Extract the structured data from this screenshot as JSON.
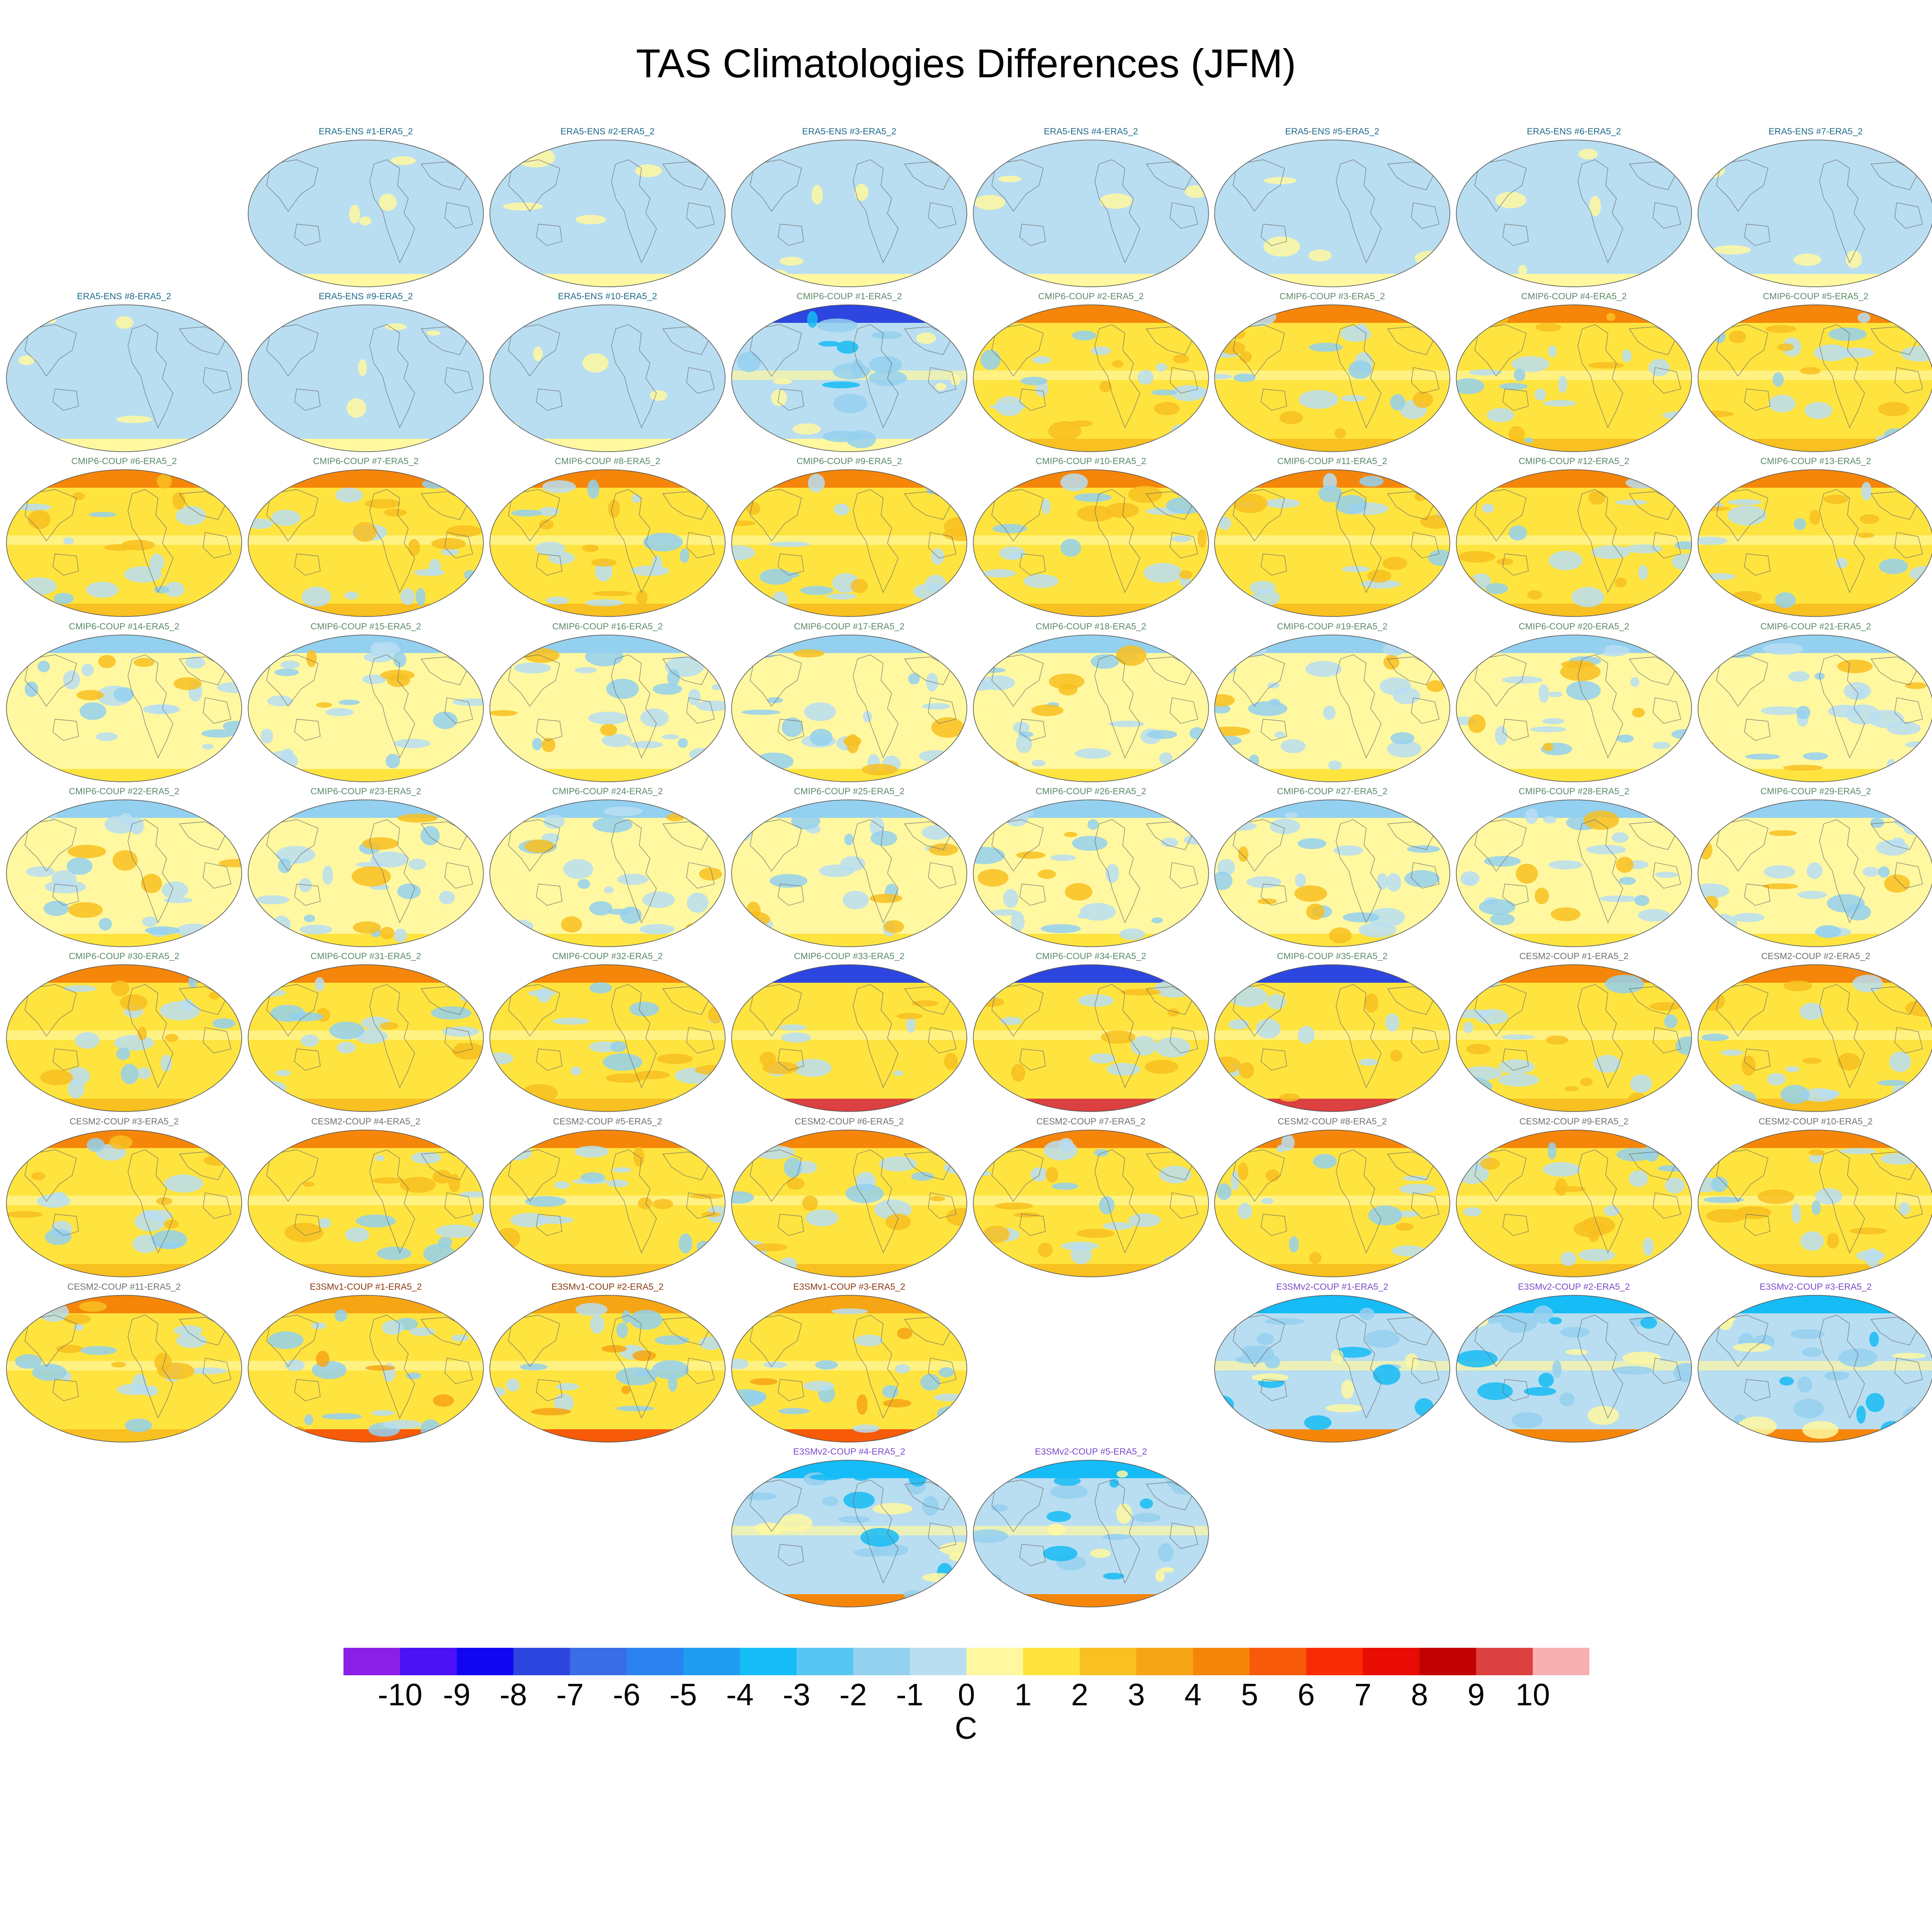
{
  "title": "TAS Climatologies Differences (JFM)",
  "chart_data": {
    "type": "heatmap",
    "title": "TAS Climatologies Differences (JFM)",
    "colorbar": {
      "unit": "C",
      "tick_labels": [
        "-10",
        "-9",
        "-8",
        "-7",
        "-6",
        "-5",
        "-4",
        "-3",
        "-2",
        "-1",
        "0",
        "1",
        "2",
        "3",
        "4",
        "5",
        "6",
        "7",
        "8",
        "9",
        "10"
      ],
      "colors": [
        "#8a1fe8",
        "#4a12f5",
        "#1206f0",
        "#2e46e0",
        "#3a6de6",
        "#2b82f0",
        "#1f9cf0",
        "#16bcf5",
        "#58c6f2",
        "#94d0ef",
        "#b9def2",
        "#fff8a0",
        "#ffe440",
        "#f8c020",
        "#f6a514",
        "#f5860a",
        "#f75a08",
        "#f92a06",
        "#e80c04",
        "#c20202",
        "#dc4040",
        "#f8b0b0"
      ]
    },
    "grid": {
      "columns": 8,
      "rows": 10
    },
    "panels": [
      {
        "label": "ERA5-ENS   #1-ERA5_2",
        "row": 0,
        "col": 1,
        "style": "flat"
      },
      {
        "label": "ERA5-ENS   #2-ERA5_2",
        "row": 0,
        "col": 2,
        "style": "flat"
      },
      {
        "label": "ERA5-ENS   #3-ERA5_2",
        "row": 0,
        "col": 3,
        "style": "flat"
      },
      {
        "label": "ERA5-ENS   #4-ERA5_2",
        "row": 0,
        "col": 4,
        "style": "flat"
      },
      {
        "label": "ERA5-ENS   #5-ERA5_2",
        "row": 0,
        "col": 5,
        "style": "flat"
      },
      {
        "label": "ERA5-ENS   #6-ERA5_2",
        "row": 0,
        "col": 6,
        "style": "flat"
      },
      {
        "label": "ERA5-ENS   #7-ERA5_2",
        "row": 0,
        "col": 7,
        "style": "flat"
      },
      {
        "label": "ERA5-ENS   #8-ERA5_2",
        "row": 1,
        "col": 0,
        "style": "flat"
      },
      {
        "label": "ERA5-ENS   #9-ERA5_2",
        "row": 1,
        "col": 1,
        "style": "flat"
      },
      {
        "label": "ERA5-ENS   #10-ERA5_2",
        "row": 1,
        "col": 2,
        "style": "flat"
      },
      {
        "label": "CMIP6-COUP  #1-ERA5_2",
        "row": 1,
        "col": 3,
        "style": "coldnorth"
      },
      {
        "label": "CMIP6-COUP  #2-ERA5_2",
        "row": 1,
        "col": 4,
        "style": "warm"
      },
      {
        "label": "CMIP6-COUP  #3-ERA5_2",
        "row": 1,
        "col": 5,
        "style": "warm"
      },
      {
        "label": "CMIP6-COUP  #4-ERA5_2",
        "row": 1,
        "col": 6,
        "style": "warm"
      },
      {
        "label": "CMIP6-COUP  #5-ERA5_2",
        "row": 1,
        "col": 7,
        "style": "warm"
      },
      {
        "label": "CMIP6-COUP  #6-ERA5_2",
        "row": 2,
        "col": 0,
        "style": "warm"
      },
      {
        "label": "CMIP6-COUP  #7-ERA5_2",
        "row": 2,
        "col": 1,
        "style": "warm"
      },
      {
        "label": "CMIP6-COUP  #8-ERA5_2",
        "row": 2,
        "col": 2,
        "style": "warm"
      },
      {
        "label": "CMIP6-COUP  #9-ERA5_2",
        "row": 2,
        "col": 3,
        "style": "warm"
      },
      {
        "label": "CMIP6-COUP  #10-ERA5_2",
        "row": 2,
        "col": 4,
        "style": "warm"
      },
      {
        "label": "CMIP6-COUP  #11-ERA5_2",
        "row": 2,
        "col": 5,
        "style": "warm"
      },
      {
        "label": "CMIP6-COUP  #12-ERA5_2",
        "row": 2,
        "col": 6,
        "style": "warm"
      },
      {
        "label": "CMIP6-COUP  #13-ERA5_2",
        "row": 2,
        "col": 7,
        "style": "warm"
      },
      {
        "label": "CMIP6-COUP  #14-ERA5_2",
        "row": 3,
        "col": 0,
        "style": "mixed"
      },
      {
        "label": "CMIP6-COUP  #15-ERA5_2",
        "row": 3,
        "col": 1,
        "style": "mixed"
      },
      {
        "label": "CMIP6-COUP  #16-ERA5_2",
        "row": 3,
        "col": 2,
        "style": "mixed"
      },
      {
        "label": "CMIP6-COUP  #17-ERA5_2",
        "row": 3,
        "col": 3,
        "style": "mixed"
      },
      {
        "label": "CMIP6-COUP  #18-ERA5_2",
        "row": 3,
        "col": 4,
        "style": "mixed"
      },
      {
        "label": "CMIP6-COUP  #19-ERA5_2",
        "row": 3,
        "col": 5,
        "style": "mixed"
      },
      {
        "label": "CMIP6-COUP  #20-ERA5_2",
        "row": 3,
        "col": 6,
        "style": "mixed"
      },
      {
        "label": "CMIP6-COUP  #21-ERA5_2",
        "row": 3,
        "col": 7,
        "style": "mixed"
      },
      {
        "label": "CMIP6-COUP  #22-ERA5_2",
        "row": 4,
        "col": 0,
        "style": "mixed"
      },
      {
        "label": "CMIP6-COUP  #23-ERA5_2",
        "row": 4,
        "col": 1,
        "style": "mixed"
      },
      {
        "label": "CMIP6-COUP  #24-ERA5_2",
        "row": 4,
        "col": 2,
        "style": "mixed"
      },
      {
        "label": "CMIP6-COUP  #25-ERA5_2",
        "row": 4,
        "col": 3,
        "style": "mixed"
      },
      {
        "label": "CMIP6-COUP  #26-ERA5_2",
        "row": 4,
        "col": 4,
        "style": "mixed"
      },
      {
        "label": "CMIP6-COUP  #27-ERA5_2",
        "row": 4,
        "col": 5,
        "style": "mixed"
      },
      {
        "label": "CMIP6-COUP  #28-ERA5_2",
        "row": 4,
        "col": 6,
        "style": "mixed"
      },
      {
        "label": "CMIP6-COUP  #29-ERA5_2",
        "row": 4,
        "col": 7,
        "style": "mixed"
      },
      {
        "label": "CMIP6-COUP  #30-ERA5_2",
        "row": 5,
        "col": 0,
        "style": "warm"
      },
      {
        "label": "CMIP6-COUP  #31-ERA5_2",
        "row": 5,
        "col": 1,
        "style": "warm"
      },
      {
        "label": "CMIP6-COUP  #32-ERA5_2",
        "row": 5,
        "col": 2,
        "style": "warm"
      },
      {
        "label": "CMIP6-COUP  #33-ERA5_2",
        "row": 5,
        "col": 3,
        "style": "coldnorth_hotsouth"
      },
      {
        "label": "CMIP6-COUP  #34-ERA5_2",
        "row": 5,
        "col": 4,
        "style": "coldnorth_hotsouth"
      },
      {
        "label": "CMIP6-COUP  #35-ERA5_2",
        "row": 5,
        "col": 5,
        "style": "coldnorth_hotsouth"
      },
      {
        "label": "CESM2-COUP  #1-ERA5_2",
        "row": 5,
        "col": 6,
        "style": "warm"
      },
      {
        "label": "CESM2-COUP  #2-ERA5_2",
        "row": 5,
        "col": 7,
        "style": "warm"
      },
      {
        "label": "CESM2-COUP  #3-ERA5_2",
        "row": 6,
        "col": 0,
        "style": "warm"
      },
      {
        "label": "CESM2-COUP  #4-ERA5_2",
        "row": 6,
        "col": 1,
        "style": "warm"
      },
      {
        "label": "CESM2-COUP  #5-ERA5_2",
        "row": 6,
        "col": 2,
        "style": "warm"
      },
      {
        "label": "CESM2-COUP  #6-ERA5_2",
        "row": 6,
        "col": 3,
        "style": "warm"
      },
      {
        "label": "CESM2-COUP  #7-ERA5_2",
        "row": 6,
        "col": 4,
        "style": "warm"
      },
      {
        "label": "CESM2-COUP  #8-ERA5_2",
        "row": 6,
        "col": 5,
        "style": "warm"
      },
      {
        "label": "CESM2-COUP  #9-ERA5_2",
        "row": 6,
        "col": 6,
        "style": "warm"
      },
      {
        "label": "CESM2-COUP  #10-ERA5_2",
        "row": 6,
        "col": 7,
        "style": "warm"
      },
      {
        "label": "CESM2-COUP  #11-ERA5_2",
        "row": 7,
        "col": 0,
        "style": "warm"
      },
      {
        "label": "E3SMv1-COUP  #1-ERA5_2",
        "row": 7,
        "col": 1,
        "style": "e3smv1"
      },
      {
        "label": "E3SMv1-COUP  #2-ERA5_2",
        "row": 7,
        "col": 2,
        "style": "e3smv1"
      },
      {
        "label": "E3SMv1-COUP  #3-ERA5_2",
        "row": 7,
        "col": 3,
        "style": "e3smv1"
      },
      {
        "label": "E3SMv2-COUP  #1-ERA5_2",
        "row": 7,
        "col": 5,
        "style": "e3smv2"
      },
      {
        "label": "E3SMv2-COUP  #2-ERA5_2",
        "row": 7,
        "col": 6,
        "style": "e3smv2"
      },
      {
        "label": "E3SMv2-COUP  #3-ERA5_2",
        "row": 7,
        "col": 7,
        "style": "e3smv2"
      },
      {
        "label": "E3SMv2-COUP  #4-ERA5_2",
        "row": 8,
        "col": 3,
        "style": "e3smv2"
      },
      {
        "label": "E3SMv2-COUP  #5-ERA5_2",
        "row": 8,
        "col": 4,
        "style": "e3smv2"
      }
    ],
    "group_label_colors": {
      "ERA5-ENS": "#1f6a8a",
      "CMIP6-COUP": "#5a8a6a",
      "CESM2-COUP": "#707070",
      "E3SMv1-COUP": "#8a3a10",
      "E3SMv2-COUP": "#7a4ac8"
    }
  }
}
